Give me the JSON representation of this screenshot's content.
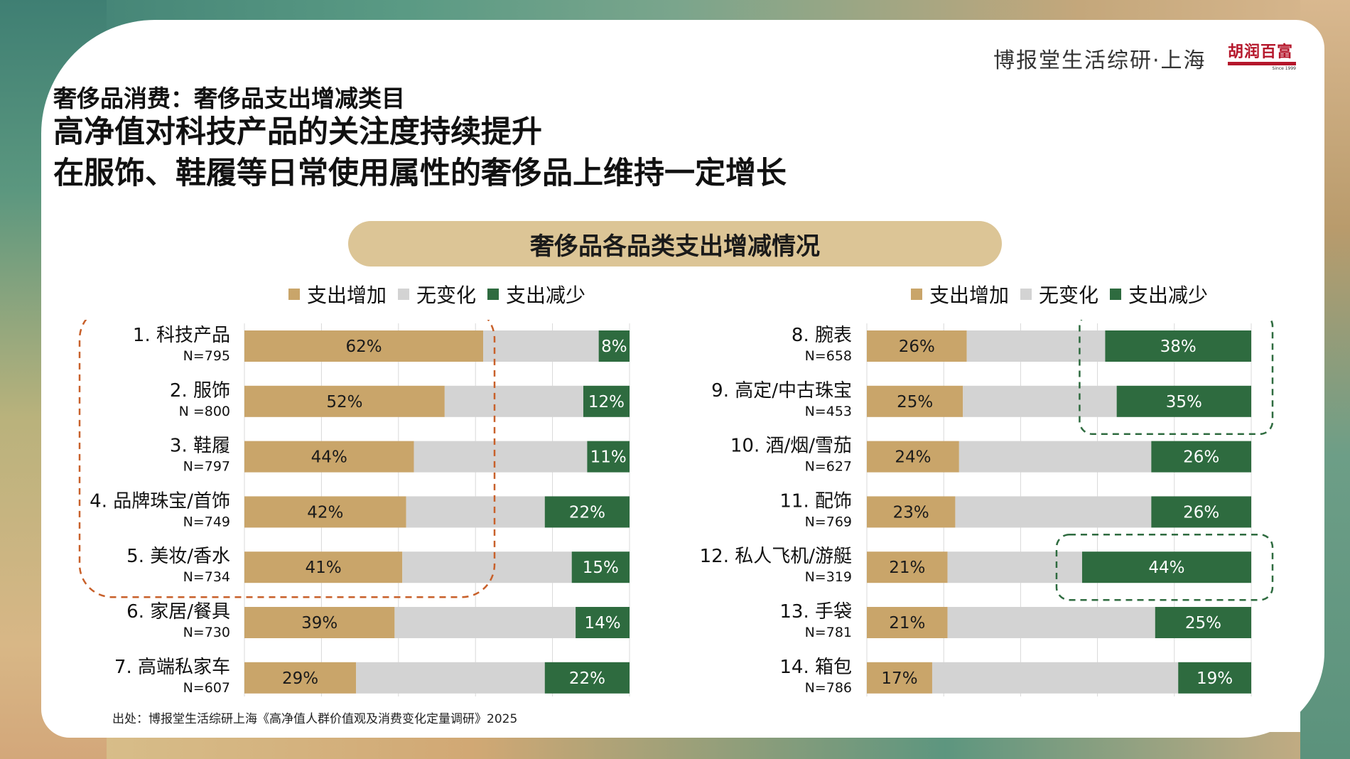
{
  "header": {
    "brand": "博报堂生活综研·上海",
    "logo_text": "胡润百富",
    "logo_sub": "Since 1999"
  },
  "subtitle": "奢侈品消费：奢侈品支出增减类目",
  "title_lines": [
    "高净值对科技产品的关注度持续提升",
    "在服饰、鞋履等日常使用属性的奢侈品上维持一定增长"
  ],
  "legend": {
    "increase": "支出增加",
    "no_change": "无变化",
    "decrease": "支出减少"
  },
  "colors": {
    "increase": "#c9a56a",
    "no_change": "#d3d3d3",
    "decrease": "#2e6b3f",
    "highlight_orange": "#c8602a",
    "highlight_green": "#2e6b3f"
  },
  "footnote": "出处：博报堂生活综研上海《高净值人群价值观及消费变化定量调研》2025",
  "chart_data": [
    {
      "type": "bar",
      "stacked": true,
      "orientation": "horizontal",
      "title": "奢侈品各品类支出增减情况",
      "xlim": [
        0,
        100
      ],
      "categories": [
        "1. 科技产品",
        "2. 服饰",
        "3. 鞋履",
        "4. 品牌珠宝/首饰",
        "5. 美妆/香水",
        "6. 家居/餐具",
        "7. 高端私家车"
      ],
      "sample_sizes": [
        "N=795",
        "N =800",
        "N=797",
        "N=749",
        "N=734",
        "N=730",
        "N=607"
      ],
      "series": [
        {
          "name": "支出增加",
          "values": [
            62,
            52,
            44,
            42,
            41,
            39,
            29
          ]
        },
        {
          "name": "无变化",
          "values": [
            30,
            36,
            45,
            36,
            44,
            47,
            49
          ]
        },
        {
          "name": "支出减少",
          "values": [
            8,
            12,
            11,
            22,
            15,
            14,
            22
          ]
        }
      ],
      "data_labels": {
        "increase": [
          "62%",
          "52%",
          "44%",
          "42%",
          "41%",
          "39%",
          "29%"
        ],
        "decrease": [
          "8%",
          "12%",
          "11%",
          "22%",
          "15%",
          "14%",
          "22%"
        ]
      },
      "highlight_rows": [
        0,
        4
      ]
    },
    {
      "type": "bar",
      "stacked": true,
      "orientation": "horizontal",
      "xlim": [
        0,
        100
      ],
      "categories": [
        "8. 腕表",
        "9. 高定/中古珠宝",
        "10. 酒/烟/雪茄",
        "11. 配饰",
        "12. 私人飞机/游艇",
        "13. 手袋",
        "14. 箱包"
      ],
      "sample_sizes": [
        "N=658",
        "N=453",
        "N=627",
        "N=769",
        "N=319",
        "N=781",
        "N=786"
      ],
      "series": [
        {
          "name": "支出增加",
          "values": [
            26,
            25,
            24,
            23,
            21,
            21,
            17
          ]
        },
        {
          "name": "无变化",
          "values": [
            36,
            40,
            50,
            51,
            35,
            54,
            64
          ]
        },
        {
          "name": "支出减少",
          "values": [
            38,
            35,
            26,
            26,
            44,
            25,
            19
          ]
        }
      ],
      "data_labels": {
        "increase": [
          "26%",
          "25%",
          "24%",
          "23%",
          "21%",
          "21%",
          "17%"
        ],
        "decrease": [
          "38%",
          "35%",
          "26%",
          "26%",
          "44%",
          "25%",
          "19%"
        ]
      },
      "highlights": [
        [
          0,
          1
        ],
        [
          4,
          4
        ]
      ]
    }
  ]
}
